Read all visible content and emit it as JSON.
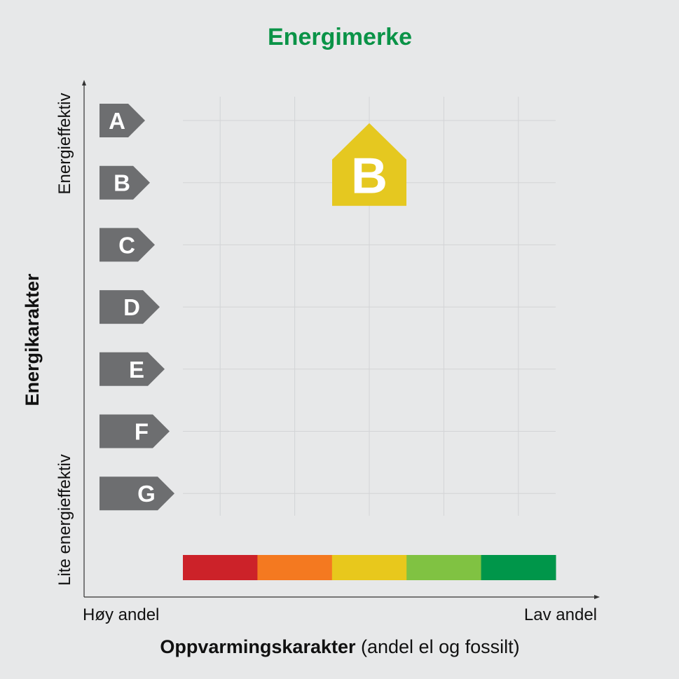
{
  "chart_data": {
    "type": "table",
    "title": "Energimerke",
    "y_axis": {
      "label": "Energikarakter",
      "top_label": "Energieffektiv",
      "bottom_label": "Lite energieffektiv",
      "grades": [
        "A",
        "B",
        "C",
        "D",
        "E",
        "F",
        "G"
      ]
    },
    "x_axis": {
      "label_bold": "Oppvarmingskarakter",
      "label_normal": " (andel el og fossilt)",
      "left_label": "Høy andel",
      "right_label": "Lav andel",
      "colors": [
        "#cc2229",
        "#f47920",
        "#e8c81c",
        "#80c242",
        "#00964a"
      ]
    },
    "marker": {
      "energy_grade": "B",
      "heating_column": 3,
      "label": "B",
      "color": "#e5c820"
    },
    "colors": {
      "title": "#0a9347",
      "grade_arrow": "#6d6e70",
      "background": "#e7e8e9",
      "grid": "#d3d4d6"
    }
  }
}
